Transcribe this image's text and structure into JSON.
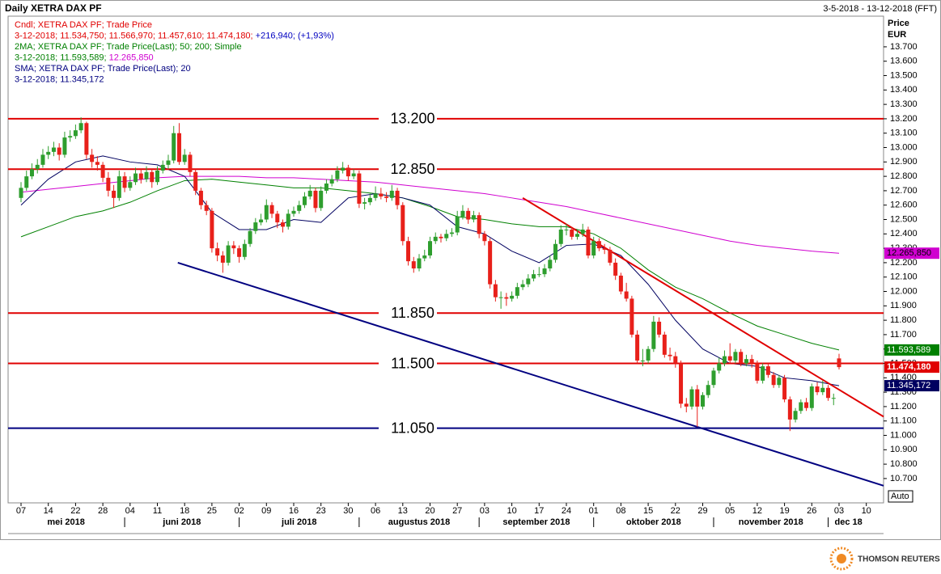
{
  "header": {
    "title": "Daily XETRA DAX PF",
    "range": "3-5-2018 - 13-12-2018 (FFT)"
  },
  "legend": [
    {
      "parts": [
        "Cndl; XETRA DAX PF; Trade Price"
      ],
      "colors": [
        "#e00000"
      ]
    },
    {
      "parts": [
        "3-12-2018; 11.534,750; 11.566,970; 11.457,610; 11.474,180; ",
        "+216,940; (+1,93%)"
      ],
      "colors": [
        "#e00000",
        "#0000c0"
      ]
    },
    {
      "parts": [
        "2MA; XETRA DAX PF; Trade Price(Last);  50; 200; Simple"
      ],
      "colors": [
        "#008000"
      ]
    },
    {
      "parts": [
        "3-12-2018; 11.593,589; ",
        "12.265,850"
      ],
      "colors": [
        "#008000",
        "#d000d0"
      ]
    },
    {
      "parts": [
        "SMA; XETRA DAX PF; Trade Price(Last);  20"
      ],
      "colors": [
        "#000080"
      ]
    },
    {
      "parts": [
        "3-12-2018; 11.345,172"
      ],
      "colors": [
        "#000080"
      ]
    }
  ],
  "chart_data": {
    "type": "candlestick",
    "axis_title": [
      "Price",
      "EUR"
    ],
    "auto": "Auto",
    "categories": [
      "07",
      "14",
      "22",
      "28",
      "04",
      "11",
      "18",
      "25",
      "02",
      "09",
      "16",
      "23",
      "30",
      "06",
      "13",
      "20",
      "27",
      "03",
      "10",
      "17",
      "24",
      "01",
      "08",
      "15",
      "22",
      "29",
      "05",
      "12",
      "19",
      "26",
      "03",
      "10"
    ],
    "months": [
      "mei 2018",
      "juni 2018",
      "juli 2018",
      "augustus 2018",
      "september 2018",
      "oktober 2018",
      "november 2018",
      "dec 18"
    ],
    "up_color": "#2e9e2e",
    "down_color": "#e8201a",
    "candles": [
      [
        12650,
        12760,
        12620,
        12720
      ],
      [
        12720,
        12840,
        12700,
        12800
      ],
      [
        12800,
        12890,
        12780,
        12850
      ],
      [
        12850,
        12920,
        12820,
        12880
      ],
      [
        12880,
        12990,
        12860,
        12950
      ],
      [
        12950,
        13010,
        12920,
        12970
      ],
      [
        12970,
        13040,
        12940,
        13000
      ],
      [
        13000,
        13030,
        12910,
        12950
      ],
      [
        12950,
        13110,
        12930,
        13070
      ],
      [
        13070,
        13120,
        13040,
        13080
      ],
      [
        13080,
        13160,
        13060,
        13120
      ],
      [
        13120,
        13210,
        13100,
        13170
      ],
      [
        13170,
        13180,
        12920,
        12950
      ],
      [
        12950,
        12990,
        12860,
        12900
      ],
      [
        12900,
        12940,
        12840,
        12880
      ],
      [
        12880,
        12900,
        12760,
        12790
      ],
      [
        12790,
        12830,
        12660,
        12700
      ],
      [
        12700,
        12740,
        12580,
        12650
      ],
      [
        12650,
        12840,
        12630,
        12800
      ],
      [
        12800,
        12830,
        12690,
        12720
      ],
      [
        12720,
        12800,
        12700,
        12760
      ],
      [
        12760,
        12860,
        12740,
        12820
      ],
      [
        12820,
        12850,
        12750,
        12780
      ],
      [
        12780,
        12870,
        12760,
        12830
      ],
      [
        12830,
        12850,
        12720,
        12760
      ],
      [
        12760,
        12870,
        12740,
        12840
      ],
      [
        12840,
        12910,
        12820,
        12880
      ],
      [
        12880,
        12950,
        12850,
        12910
      ],
      [
        12910,
        13150,
        12890,
        13100
      ],
      [
        13100,
        13170,
        12880,
        12900
      ],
      [
        12900,
        12990,
        12880,
        12950
      ],
      [
        12950,
        12970,
        12800,
        12830
      ],
      [
        12830,
        12850,
        12670,
        12700
      ],
      [
        12700,
        12720,
        12570,
        12600
      ],
      [
        12600,
        12630,
        12530,
        12560
      ],
      [
        12560,
        12580,
        12270,
        12300
      ],
      [
        12300,
        12340,
        12210,
        12250
      ],
      [
        12250,
        12280,
        12130,
        12200
      ],
      [
        12200,
        12350,
        12180,
        12320
      ],
      [
        12320,
        12350,
        12260,
        12300
      ],
      [
        12300,
        12320,
        12200,
        12240
      ],
      [
        12240,
        12360,
        12220,
        12330
      ],
      [
        12330,
        12440,
        12310,
        12420
      ],
      [
        12420,
        12510,
        12400,
        12480
      ],
      [
        12480,
        12540,
        12460,
        12500
      ],
      [
        12500,
        12640,
        12480,
        12600
      ],
      [
        12600,
        12620,
        12510,
        12540
      ],
      [
        12540,
        12560,
        12440,
        12480
      ],
      [
        12480,
        12500,
        12410,
        12450
      ],
      [
        12450,
        12570,
        12430,
        12540
      ],
      [
        12540,
        12590,
        12520,
        12560
      ],
      [
        12560,
        12630,
        12540,
        12600
      ],
      [
        12600,
        12690,
        12580,
        12660
      ],
      [
        12660,
        12740,
        12640,
        12700
      ],
      [
        12700,
        12720,
        12550,
        12580
      ],
      [
        12580,
        12730,
        12560,
        12700
      ],
      [
        12700,
        12780,
        12680,
        12750
      ],
      [
        12750,
        12810,
        12730,
        12780
      ],
      [
        12780,
        12870,
        12760,
        12840
      ],
      [
        12840,
        12900,
        12820,
        12860
      ],
      [
        12860,
        12880,
        12770,
        12800
      ],
      [
        12800,
        12850,
        12780,
        12820
      ],
      [
        12820,
        12840,
        12580,
        12610
      ],
      [
        12610,
        12650,
        12570,
        12620
      ],
      [
        12620,
        12680,
        12600,
        12650
      ],
      [
        12650,
        12730,
        12630,
        12680
      ],
      [
        12680,
        12720,
        12640,
        12660
      ],
      [
        12660,
        12690,
        12620,
        12650
      ],
      [
        12650,
        12740,
        12630,
        12700
      ],
      [
        12700,
        12720,
        12570,
        12600
      ],
      [
        12600,
        12620,
        12320,
        12350
      ],
      [
        12350,
        12380,
        12180,
        12210
      ],
      [
        12210,
        12240,
        12130,
        12160
      ],
      [
        12160,
        12260,
        12140,
        12230
      ],
      [
        12230,
        12290,
        12210,
        12250
      ],
      [
        12250,
        12380,
        12230,
        12350
      ],
      [
        12350,
        12410,
        12330,
        12380
      ],
      [
        12380,
        12400,
        12340,
        12370
      ],
      [
        12370,
        12430,
        12350,
        12400
      ],
      [
        12400,
        12440,
        12380,
        12410
      ],
      [
        12410,
        12560,
        12390,
        12520
      ],
      [
        12520,
        12600,
        12500,
        12560
      ],
      [
        12560,
        12580,
        12470,
        12500
      ],
      [
        12500,
        12560,
        12480,
        12530
      ],
      [
        12530,
        12550,
        12370,
        12400
      ],
      [
        12400,
        12420,
        12320,
        12350
      ],
      [
        12350,
        12370,
        12020,
        12050
      ],
      [
        12050,
        12080,
        11930,
        11960
      ],
      [
        11960,
        12000,
        11880,
        11960
      ],
      [
        11960,
        11990,
        11900,
        11950
      ],
      [
        11950,
        12000,
        11930,
        11970
      ],
      [
        11970,
        12060,
        11950,
        12030
      ],
      [
        12030,
        12080,
        12010,
        12050
      ],
      [
        12050,
        12120,
        12030,
        12090
      ],
      [
        12090,
        12150,
        12070,
        12120
      ],
      [
        12120,
        12170,
        12100,
        12120
      ],
      [
        12120,
        12190,
        12100,
        12160
      ],
      [
        12160,
        12250,
        12140,
        12220
      ],
      [
        12220,
        12360,
        12200,
        12330
      ],
      [
        12330,
        12460,
        12310,
        12430
      ],
      [
        12430,
        12470,
        12390,
        12430
      ],
      [
        12430,
        12450,
        12360,
        12380
      ],
      [
        12380,
        12430,
        12360,
        12400
      ],
      [
        12400,
        12470,
        12380,
        12430
      ],
      [
        12430,
        12450,
        12230,
        12250
      ],
      [
        12250,
        12380,
        12230,
        12350
      ],
      [
        12350,
        12370,
        12280,
        12300
      ],
      [
        12300,
        12330,
        12260,
        12290
      ],
      [
        12290,
        12310,
        12180,
        12200
      ],
      [
        12200,
        12230,
        12080,
        12110
      ],
      [
        12110,
        12130,
        11980,
        12000
      ],
      [
        12000,
        12060,
        11930,
        11950
      ],
      [
        11950,
        11970,
        11680,
        11700
      ],
      [
        11700,
        11730,
        11500,
        11520
      ],
      [
        11520,
        11600,
        11480,
        11520
      ],
      [
        11520,
        11620,
        11500,
        11600
      ],
      [
        11600,
        11830,
        11580,
        11790
      ],
      [
        11790,
        11820,
        11680,
        11700
      ],
      [
        11700,
        11720,
        11540,
        11560
      ],
      [
        11560,
        11610,
        11520,
        11550
      ],
      [
        11550,
        11580,
        11470,
        11500
      ],
      [
        11500,
        11520,
        11190,
        11220
      ],
      [
        11220,
        11260,
        11160,
        11200
      ],
      [
        11200,
        11340,
        11180,
        11320
      ],
      [
        11320,
        11350,
        11060,
        11200
      ],
      [
        11200,
        11300,
        11180,
        11280
      ],
      [
        11280,
        11380,
        11260,
        11350
      ],
      [
        11350,
        11470,
        11330,
        11450
      ],
      [
        11450,
        11540,
        11430,
        11500
      ],
      [
        11500,
        11590,
        11480,
        11550
      ],
      [
        11550,
        11640,
        11500,
        11520
      ],
      [
        11520,
        11600,
        11500,
        11580
      ],
      [
        11580,
        11600,
        11480,
        11500
      ],
      [
        11500,
        11560,
        11480,
        11530
      ],
      [
        11530,
        11560,
        11470,
        11500
      ],
      [
        11500,
        11520,
        11360,
        11380
      ],
      [
        11380,
        11500,
        11360,
        11480
      ],
      [
        11480,
        11500,
        11400,
        11420
      ],
      [
        11420,
        11440,
        11330,
        11350
      ],
      [
        11350,
        11420,
        11330,
        11400
      ],
      [
        11400,
        11420,
        11230,
        11250
      ],
      [
        11250,
        11270,
        11030,
        11110
      ],
      [
        11110,
        11190,
        11090,
        11170
      ],
      [
        11170,
        11250,
        11150,
        11230
      ],
      [
        11230,
        11260,
        11170,
        11190
      ],
      [
        11190,
        11360,
        11170,
        11340
      ],
      [
        11340,
        11370,
        11280,
        11300
      ],
      [
        11300,
        11380,
        11280,
        11330
      ],
      [
        11330,
        11350,
        11240,
        11260
      ],
      [
        11260,
        11290,
        11210,
        11260
      ],
      [
        11534.75,
        11566.97,
        11457.61,
        11474.18
      ]
    ],
    "series": [
      {
        "color": "#d000d0",
        "box_text": "#000000",
        "end_label": "12.265,850",
        "values": [
          12690,
          12710,
          12730,
          12750,
          12770,
          12790,
          12800,
          12800,
          12800,
          12790,
          12790,
          12780,
          12770,
          12760,
          12740,
          12720,
          12700,
          12680,
          12650,
          12620,
          12590,
          12550,
          12510,
          12470,
          12430,
          12390,
          12350,
          12320,
          12300,
          12280,
          12265.85,
          null
        ]
      },
      {
        "color": "#008000",
        "box_text": "#ffffff",
        "end_label": "11.593,589",
        "values": [
          12380,
          12450,
          12520,
          12560,
          12620,
          12700,
          12770,
          12780,
          12760,
          12740,
          12720,
          12720,
          12700,
          12680,
          12650,
          12590,
          12520,
          12500,
          12470,
          12450,
          12450,
          12400,
          12300,
          12150,
          12030,
          11950,
          11850,
          11760,
          11700,
          11640,
          11593.589,
          null
        ]
      },
      {
        "color": "#000060",
        "box_text": "#ffffff",
        "end_label": "11.345,172",
        "values": [
          12600,
          12780,
          12900,
          12942,
          12900,
          12880,
          12800,
          12550,
          12430,
          12430,
          12500,
          12480,
          12650,
          12680,
          12650,
          12600,
          12450,
          12400,
          12280,
          12200,
          12320,
          12330,
          12250,
          12050,
          11800,
          11600,
          11500,
          11480,
          11400,
          11380,
          11345.172,
          null
        ]
      }
    ],
    "last_label": {
      "value": 11474.18,
      "label": "11.474,180",
      "color": "#e00000"
    },
    "levels": [
      {
        "value": 13200,
        "label": "13.200",
        "color": "#e00000"
      },
      {
        "value": 12850,
        "label": "12.850",
        "color": "#e00000"
      },
      {
        "value": 11850,
        "label": "11.850",
        "color": "#e00000"
      },
      {
        "value": 11500,
        "label": "11.500",
        "color": "#e00000"
      },
      {
        "value": 11050,
        "label": "11.050",
        "color": "#000080"
      }
    ],
    "trendlines": [
      {
        "color": "#e00000",
        "values": [
          12650,
          11130
        ]
      },
      {
        "color": "#000080",
        "values": [
          12200,
          10650
        ]
      }
    ],
    "ylim": [
      10531,
      13913
    ],
    "yticks": [
      {
        "value": 10700,
        "label": "10.700"
      },
      {
        "value": 10800,
        "label": "10.800"
      },
      {
        "value": 10900,
        "label": "10.900"
      },
      {
        "value": 11000,
        "label": "11.000"
      },
      {
        "value": 11100,
        "label": "11.100"
      },
      {
        "value": 11200,
        "label": "11.200"
      },
      {
        "value": 11300,
        "label": "11.300"
      },
      {
        "value": 11400,
        "label": "11.400"
      },
      {
        "value": 11500,
        "label": "11.500"
      },
      {
        "value": 11600,
        "label": "11.600"
      },
      {
        "value": 11700,
        "label": "11.700"
      },
      {
        "value": 11800,
        "label": "11.800"
      },
      {
        "value": 11900,
        "label": "11.900"
      },
      {
        "value": 12000,
        "label": "12.000"
      },
      {
        "value": 12100,
        "label": "12.100"
      },
      {
        "value": 12200,
        "label": "12.200"
      },
      {
        "value": 12300,
        "label": "12.300"
      },
      {
        "value": 12400,
        "label": "12.400"
      },
      {
        "value": 12500,
        "label": "12.500"
      },
      {
        "value": 12600,
        "label": "12.600"
      },
      {
        "value": 12700,
        "label": "12.700"
      },
      {
        "value": 12800,
        "label": "12.800"
      },
      {
        "value": 12900,
        "label": "12.900"
      },
      {
        "value": 13000,
        "label": "13.000"
      },
      {
        "value": 13100,
        "label": "13.100"
      },
      {
        "value": 13200,
        "label": "13.200"
      },
      {
        "value": 13300,
        "label": "13.300"
      },
      {
        "value": 13400,
        "label": "13.400"
      },
      {
        "value": 13500,
        "label": "13.500"
      },
      {
        "value": 13600,
        "label": "13.600"
      },
      {
        "value": 13700,
        "label": "13.700"
      }
    ]
  },
  "footer": {
    "brand": "THOMSON REUTERS"
  }
}
